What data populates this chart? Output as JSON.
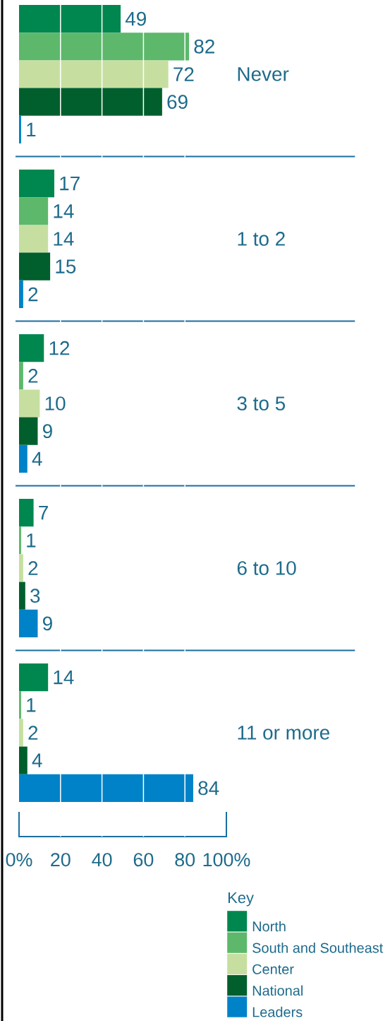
{
  "chart_data": {
    "type": "bar",
    "orientation": "horizontal",
    "categories": [
      "Never",
      "1 to 2",
      "3 to 5",
      "6 to 10",
      "11 or more"
    ],
    "series": [
      {
        "name": "North",
        "color": "#00874f",
        "values": [
          49,
          17,
          12,
          7,
          14
        ]
      },
      {
        "name": "South and Southeast",
        "color": "#5db86b",
        "values": [
          82,
          14,
          2,
          1,
          1
        ]
      },
      {
        "name": "Center",
        "color": "#c6dfa0",
        "values": [
          72,
          14,
          10,
          2,
          2
        ]
      },
      {
        "name": "National",
        "color": "#005f2c",
        "values": [
          69,
          15,
          9,
          3,
          4
        ]
      },
      {
        "name": "Leaders",
        "color": "#0082c8",
        "values": [
          1,
          2,
          4,
          9,
          84
        ]
      }
    ],
    "xlim": [
      0,
      100
    ],
    "xticks": [
      {
        "value": 0,
        "label": "0%"
      },
      20,
      40,
      60,
      80,
      {
        "value": 100,
        "label": "100%"
      }
    ],
    "grid": "x",
    "legend": "bottom right",
    "legend_title": "Key",
    "data_labels": true
  }
}
